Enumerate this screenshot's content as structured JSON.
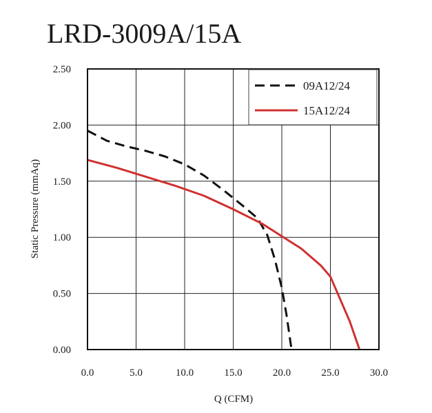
{
  "chart_data": {
    "type": "line",
    "title": "LRD-3009A/15A",
    "xlabel": "Q (CFM)",
    "ylabel": "Static Pressure (mmAq)",
    "xlim": [
      0,
      30
    ],
    "ylim": [
      0,
      2.5
    ],
    "x_ticks": [
      "0.0",
      "5.0",
      "10.0",
      "15.0",
      "20.0",
      "25.0",
      "30.0"
    ],
    "y_ticks": [
      "0.00",
      "0.50",
      "1.00",
      "1.50",
      "2.00",
      "2.50"
    ],
    "grid": true,
    "legend_position": "top-right",
    "series": [
      {
        "name": "09A12/24",
        "color": "#111111",
        "style": "dashed",
        "points": [
          [
            0,
            1.95
          ],
          [
            2,
            1.86
          ],
          [
            4,
            1.81
          ],
          [
            6,
            1.77
          ],
          [
            8,
            1.72
          ],
          [
            10,
            1.65
          ],
          [
            12,
            1.55
          ],
          [
            14,
            1.42
          ],
          [
            16,
            1.28
          ],
          [
            17.5,
            1.17
          ],
          [
            18.5,
            1.02
          ],
          [
            19.3,
            0.8
          ],
          [
            20,
            0.55
          ],
          [
            20.5,
            0.3
          ],
          [
            21,
            0.0
          ]
        ]
      },
      {
        "name": "15A12/24",
        "color": "#d03030",
        "style": "solid",
        "points": [
          [
            0,
            1.69
          ],
          [
            3,
            1.62
          ],
          [
            6,
            1.54
          ],
          [
            9,
            1.46
          ],
          [
            12,
            1.37
          ],
          [
            15,
            1.25
          ],
          [
            18,
            1.12
          ],
          [
            20,
            1.01
          ],
          [
            22,
            0.9
          ],
          [
            24,
            0.75
          ],
          [
            25,
            0.65
          ],
          [
            26,
            0.45
          ],
          [
            27,
            0.25
          ],
          [
            28,
            0.0
          ]
        ]
      }
    ]
  }
}
